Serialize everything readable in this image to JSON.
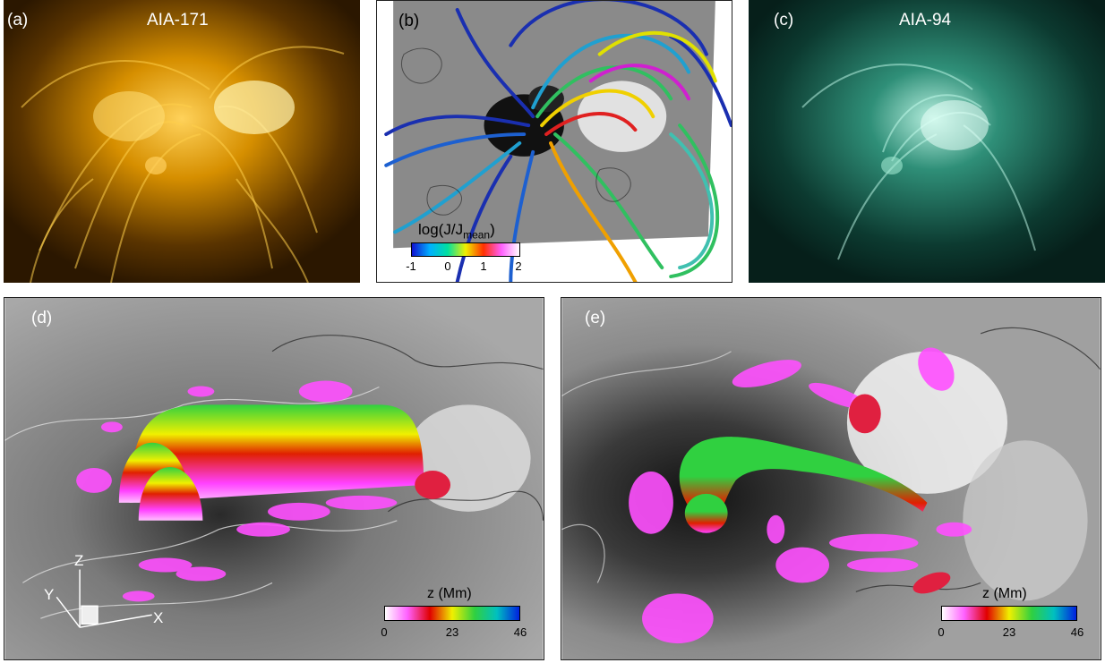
{
  "panels": {
    "a": {
      "label": "(a)",
      "title": "AIA-171"
    },
    "b": {
      "label": "(b)"
    },
    "c": {
      "label": "(c)",
      "title": "AIA-94"
    },
    "d": {
      "label": "(d)",
      "axes": {
        "z": "Z",
        "y": "Y",
        "x": "X"
      }
    },
    "e": {
      "label": "(e)"
    }
  },
  "colorbar_b": {
    "title_main": "log(J/J",
    "title_sub": "mean",
    "title_end": ")",
    "ticks": [
      "-1",
      "0",
      "1",
      "2"
    ]
  },
  "colorbar_z": {
    "title": "z (Mm)",
    "ticks": [
      "0",
      "23",
      "46"
    ]
  },
  "colors": {
    "aia171": "#d08a00",
    "aia94": "#2fa38a",
    "magnetogram_gray": "#8a8a8a"
  }
}
